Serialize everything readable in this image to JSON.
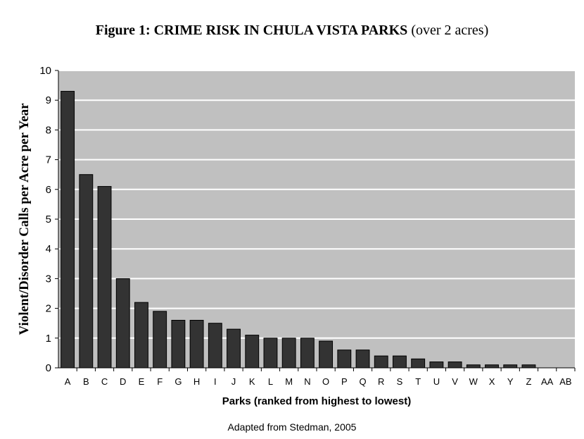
{
  "title_bold": "Figure 1:  CRIME RISK IN CHULA VISTA PARKS",
  "title_rest": "(over 2 acres)",
  "source": "Adapted from Stedman, 2005",
  "colors": {
    "bar": "#333333",
    "plot_bg": "#c0c0c0",
    "grid": "#ffffff"
  },
  "chart_data": {
    "type": "bar",
    "title": "Figure 1:  CRIME RISK IN CHULA VISTA PARKS (over 2 acres)",
    "xlabel": "Parks (ranked from highest to lowest)",
    "ylabel": "Violent/Disorder Calls per Acre per Year",
    "ylim": [
      0,
      10
    ],
    "yticks": [
      0,
      1,
      2,
      3,
      4,
      5,
      6,
      7,
      8,
      9,
      10
    ],
    "grid": true,
    "categories": [
      "A",
      "B",
      "C",
      "D",
      "E",
      "F",
      "G",
      "H",
      "I",
      "J",
      "K",
      "L",
      "M",
      "N",
      "O",
      "P",
      "Q",
      "R",
      "S",
      "T",
      "U",
      "V",
      "W",
      "X",
      "Y",
      "Z",
      "AA",
      "AB"
    ],
    "values": [
      9.3,
      6.5,
      6.1,
      3.0,
      2.2,
      1.9,
      1.6,
      1.6,
      1.5,
      1.3,
      1.1,
      1.0,
      1.0,
      1.0,
      0.9,
      0.6,
      0.6,
      0.4,
      0.4,
      0.3,
      0.2,
      0.2,
      0.1,
      0.1,
      0.1,
      0.1,
      0.0,
      0.0
    ]
  }
}
